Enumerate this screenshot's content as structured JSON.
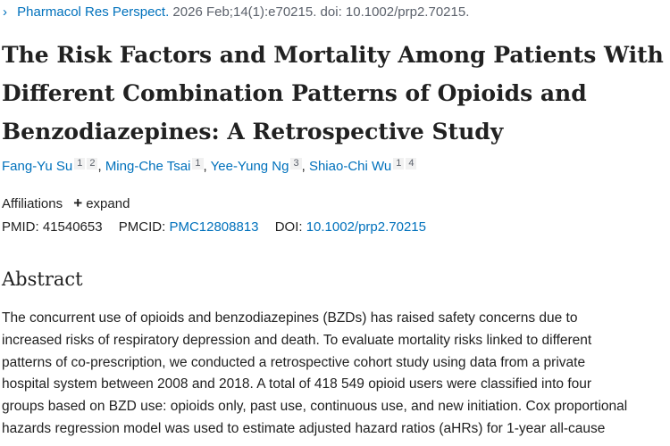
{
  "citation": {
    "chevron": "›",
    "journal": "Pharmacol Res Perspect.",
    "details": "2026 Feb;14(1):e70215. doi: 10.1002/prp2.70215."
  },
  "title_lines": [
    "The Risk Factors and Mortality Among Patients With",
    "Different Combination Patterns of Opioids and",
    "Benzodiazepines: A Retrospective Study"
  ],
  "authors": [
    {
      "name": "Fang-Yu Su",
      "affils": [
        "1",
        "2"
      ]
    },
    {
      "name": "Ming-Che Tsai",
      "affils": [
        "1"
      ]
    },
    {
      "name": "Yee-Yung Ng",
      "affils": [
        "3"
      ]
    },
    {
      "name": "Shiao-Chi Wu",
      "affils": [
        "1",
        "4"
      ]
    }
  ],
  "affiliations": {
    "label": "Affiliations",
    "expand_label": "expand"
  },
  "identifiers": {
    "pmid_label": "PMID:",
    "pmid": "41540653",
    "pmcid_label": "PMCID:",
    "pmcid": "PMC12808813",
    "doi_label": "DOI:",
    "doi": "10.1002/prp2.70215"
  },
  "abstract": {
    "heading": "Abstract",
    "lines": [
      "The concurrent use of opioids and benzodiazepines (BZDs) has raised safety concerns due to",
      "increased risks of respiratory depression and death. To evaluate mortality risks linked to different",
      "patterns of co-prescription, we conducted a retrospective cohort study using data from a private",
      "hospital system between 2008 and 2018. A total of 418 549 opioid users were classified into four",
      "groups based on BZD use: opioids only, past use, continuous use, and new initiation. Cox proportional",
      "hazards regression model was used to estimate adjusted hazard ratios (aHRs) for 1-year all-cause"
    ]
  }
}
